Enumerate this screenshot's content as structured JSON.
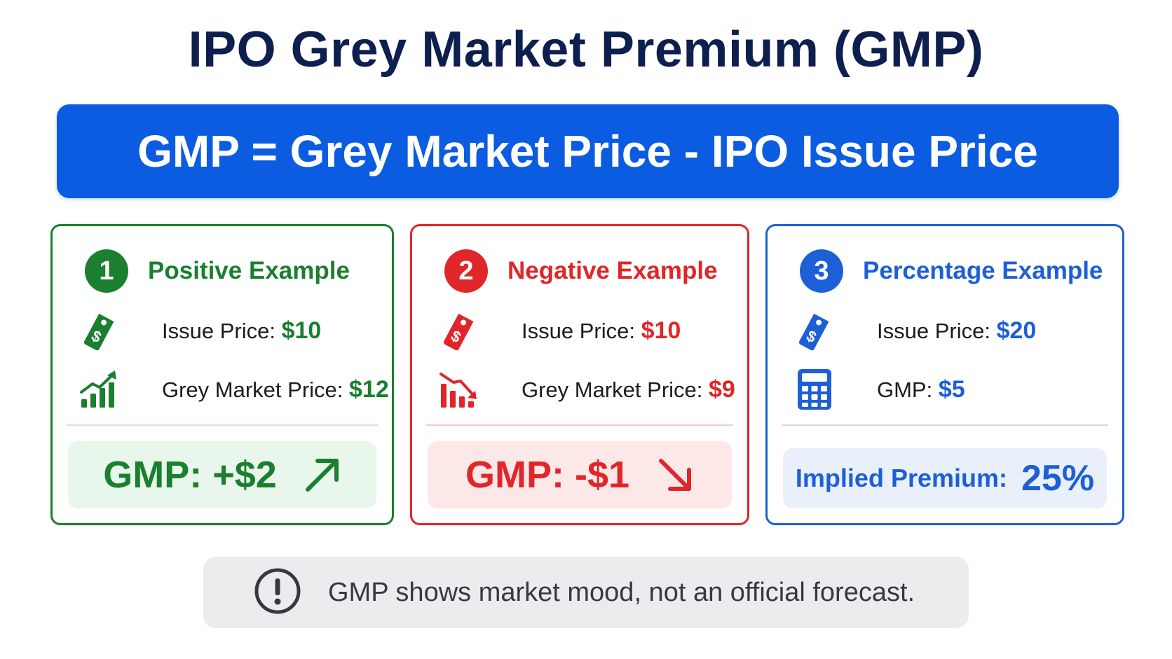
{
  "title": "IPO Grey Market Premium (GMP)",
  "formula": "GMP = Grey Market Price - IPO Issue Price",
  "colors": {
    "positive": "#1a7f2e",
    "negative": "#e0262a",
    "percentage": "#1d5fd6",
    "formula_bg": "#0b5ce0"
  },
  "cards": [
    {
      "number": "1",
      "heading": "Positive Example",
      "row1": {
        "label": "Issue Price:",
        "value": "$10",
        "icon": "price-tag-icon"
      },
      "row2": {
        "label": "Grey Market Price:",
        "value": "$12",
        "icon": "chart-up-icon"
      },
      "result": "GMP: +$2",
      "result_icon": "arrow-up-right-icon"
    },
    {
      "number": "2",
      "heading": "Negative Example",
      "row1": {
        "label": "Issue Price:",
        "value": "$10",
        "icon": "price-tag-icon"
      },
      "row2": {
        "label": "Grey Market Price:",
        "value": "$9",
        "icon": "chart-down-icon"
      },
      "result": "GMP: -$1",
      "result_icon": "arrow-down-right-icon"
    },
    {
      "number": "3",
      "heading": "Percentage Example",
      "row1": {
        "label": "Issue Price:",
        "value": "$20",
        "icon": "price-tag-icon"
      },
      "row2": {
        "label": "GMP:",
        "value": "$5",
        "icon": "calculator-icon"
      },
      "result_label": "Implied Premium:",
      "result_value": "25%"
    }
  ],
  "note": {
    "text": "GMP shows market mood, not an official forecast.",
    "icon": "exclamation-icon"
  }
}
